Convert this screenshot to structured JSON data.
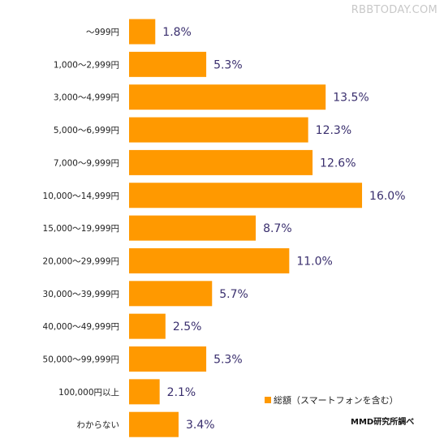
{
  "watermark": "RBBTODAY.COM",
  "source_note": "MMD研究所調べ",
  "colors": {
    "bar": "#FF9900",
    "value_text": "#3a2f6e",
    "category_text": "#222222"
  },
  "chart_data": {
    "type": "bar",
    "orientation": "horizontal",
    "title": "",
    "xlabel": "",
    "ylabel": "",
    "value_suffix": "%",
    "xlim": [
      0,
      16
    ],
    "grid": false,
    "legend_position": "bottom-right",
    "categories": [
      "〜999円",
      "1,000〜2,999円",
      "3,000〜4,999円",
      "5,000〜6,999円",
      "7,000〜9,999円",
      "10,000〜14,999円",
      "15,000〜19,999円",
      "20,000〜29,999円",
      "30,000〜39,999円",
      "40,000〜49,999円",
      "50,000〜99,999円",
      "100,000円以上",
      "わからない"
    ],
    "series": [
      {
        "name": "総額（スマートフォンを含む）",
        "values": [
          1.8,
          5.3,
          13.5,
          12.3,
          12.6,
          16.0,
          8.7,
          11.0,
          5.7,
          2.5,
          5.3,
          2.1,
          3.4
        ]
      }
    ]
  }
}
